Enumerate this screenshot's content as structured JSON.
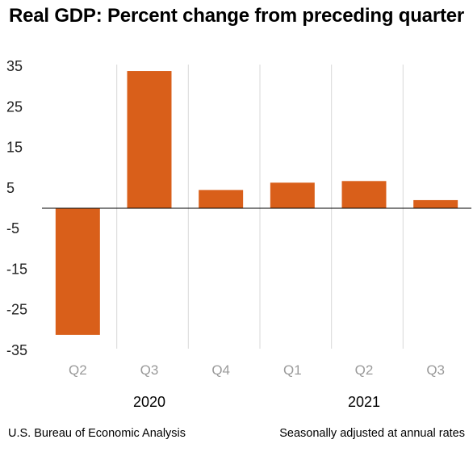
{
  "title": "Real GDP:  Percent change from preceding quarter",
  "footer": {
    "source": "U.S. Bureau of Economic Analysis",
    "note": "Seasonally adjusted at annual rates"
  },
  "colors": {
    "bar": "#d95f1a",
    "separator": "#d9d9d9",
    "zero_line": "#000000"
  },
  "chart_data": {
    "type": "bar",
    "title": "Real GDP:  Percent change from preceding quarter",
    "categories": [
      "Q2",
      "Q3",
      "Q4",
      "Q1",
      "Q2",
      "Q3"
    ],
    "year_groups": [
      {
        "label": "2020",
        "categories": [
          "Q2",
          "Q3",
          "Q4"
        ]
      },
      {
        "label": "2021",
        "categories": [
          "Q1",
          "Q2",
          "Q3"
        ]
      }
    ],
    "values": [
      -31.2,
      33.8,
      4.5,
      6.3,
      6.7,
      2.0
    ],
    "yticks": [
      35,
      25,
      15,
      5,
      -5,
      -15,
      -25,
      -35
    ],
    "ylim": [
      -35,
      35
    ],
    "grid": false,
    "legend": "none"
  }
}
